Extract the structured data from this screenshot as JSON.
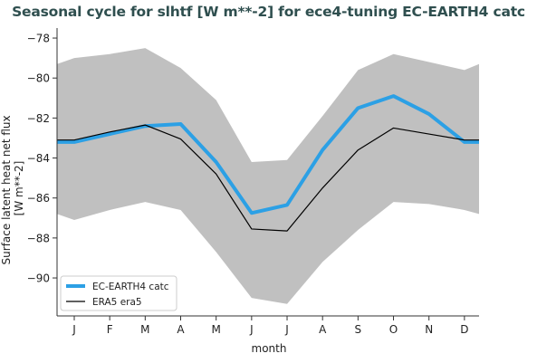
{
  "chart_data": {
    "type": "line",
    "title": "Seasonal cycle for slhtf [W m**-2] for ece4-tuning EC-EARTH4 catc",
    "xlabel": "month",
    "ylabel_lines": [
      "Surface latent heat net flux",
      "[W m**-2]"
    ],
    "categories": [
      "J",
      "F",
      "M",
      "A",
      "M",
      "J",
      "J",
      "A",
      "S",
      "O",
      "N",
      "D"
    ],
    "ylim": [
      -91.9,
      -77.5
    ],
    "yticks": [
      -78,
      -80,
      -82,
      -84,
      -86,
      -88,
      -90
    ],
    "ytick_labels": [
      "−78",
      "−80",
      "−82",
      "−84",
      "−86",
      "−88",
      "−90"
    ],
    "band": {
      "upper": [
        -79.0,
        -78.8,
        -78.5,
        -79.5,
        -81.1,
        -84.2,
        -84.1,
        -81.9,
        -79.6,
        -78.8,
        -79.2,
        -79.6
      ],
      "lower": [
        -87.1,
        -86.6,
        -86.2,
        -86.6,
        -88.7,
        -91.0,
        -91.3,
        -89.2,
        -87.6,
        -86.2,
        -86.3,
        -86.6
      ],
      "edge_left": [
        -79.3,
        -86.8
      ],
      "edge_right": [
        -79.3,
        -86.8
      ],
      "color": "#c0c0c0"
    },
    "series": [
      {
        "name": "EC-EARTH4 catc",
        "values": [
          -83.2,
          -82.8,
          -82.4,
          -82.3,
          -84.2,
          -86.75,
          -86.35,
          -83.6,
          -81.5,
          -80.9,
          -81.8,
          -83.2
        ],
        "edge_left": -83.2,
        "edge_right": -83.2,
        "color": "#2ca0e5",
        "width": 4
      },
      {
        "name": "ERA5 era5",
        "values": [
          -83.1,
          -82.7,
          -82.35,
          -83.05,
          -84.8,
          -87.55,
          -87.65,
          -85.5,
          -83.6,
          -82.5,
          -82.8,
          -83.1
        ],
        "edge_left": -83.1,
        "edge_right": -83.1,
        "color": "#000000",
        "width": 1.2
      }
    ],
    "legend_position": "lower-left",
    "grid": false
  }
}
